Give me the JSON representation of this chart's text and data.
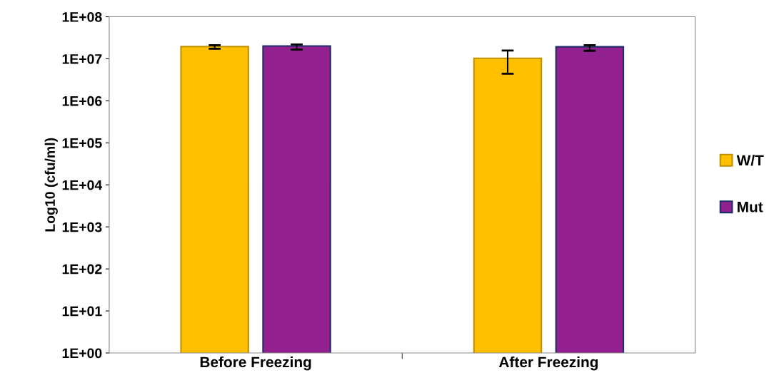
{
  "chart_data": {
    "type": "bar",
    "ylabel": "Log10 (cfu/ml)",
    "categories": [
      "Before Freezing",
      "After Freezing"
    ],
    "log": "y",
    "ylim": [
      1,
      100000000
    ],
    "yticks": [
      {
        "value": 1,
        "label": "1E+00"
      },
      {
        "value": 10,
        "label": "1E+01"
      },
      {
        "value": 100,
        "label": "1E+02"
      },
      {
        "value": 1000,
        "label": "1E+03"
      },
      {
        "value": 10000,
        "label": "1E+04"
      },
      {
        "value": 100000,
        "label": "1E+05"
      },
      {
        "value": 1000000,
        "label": "1E+06"
      },
      {
        "value": 10000000,
        "label": "1E+07"
      },
      {
        "value": 100000000,
        "label": "1E+08"
      }
    ],
    "series": [
      {
        "name": "W/T",
        "color": "#ffc000",
        "values": [
          19600000,
          10300000
        ],
        "errors": [
          [
            17300000,
            21000000
          ],
          [
            4400000,
            15700000
          ]
        ]
      },
      {
        "name": "Mut",
        "color": "#92208f",
        "values": [
          20200000,
          19300000
        ],
        "errors": [
          [
            16500000,
            21900000
          ],
          [
            15500000,
            21000000
          ]
        ]
      }
    ],
    "legend": "right",
    "grid": false
  }
}
